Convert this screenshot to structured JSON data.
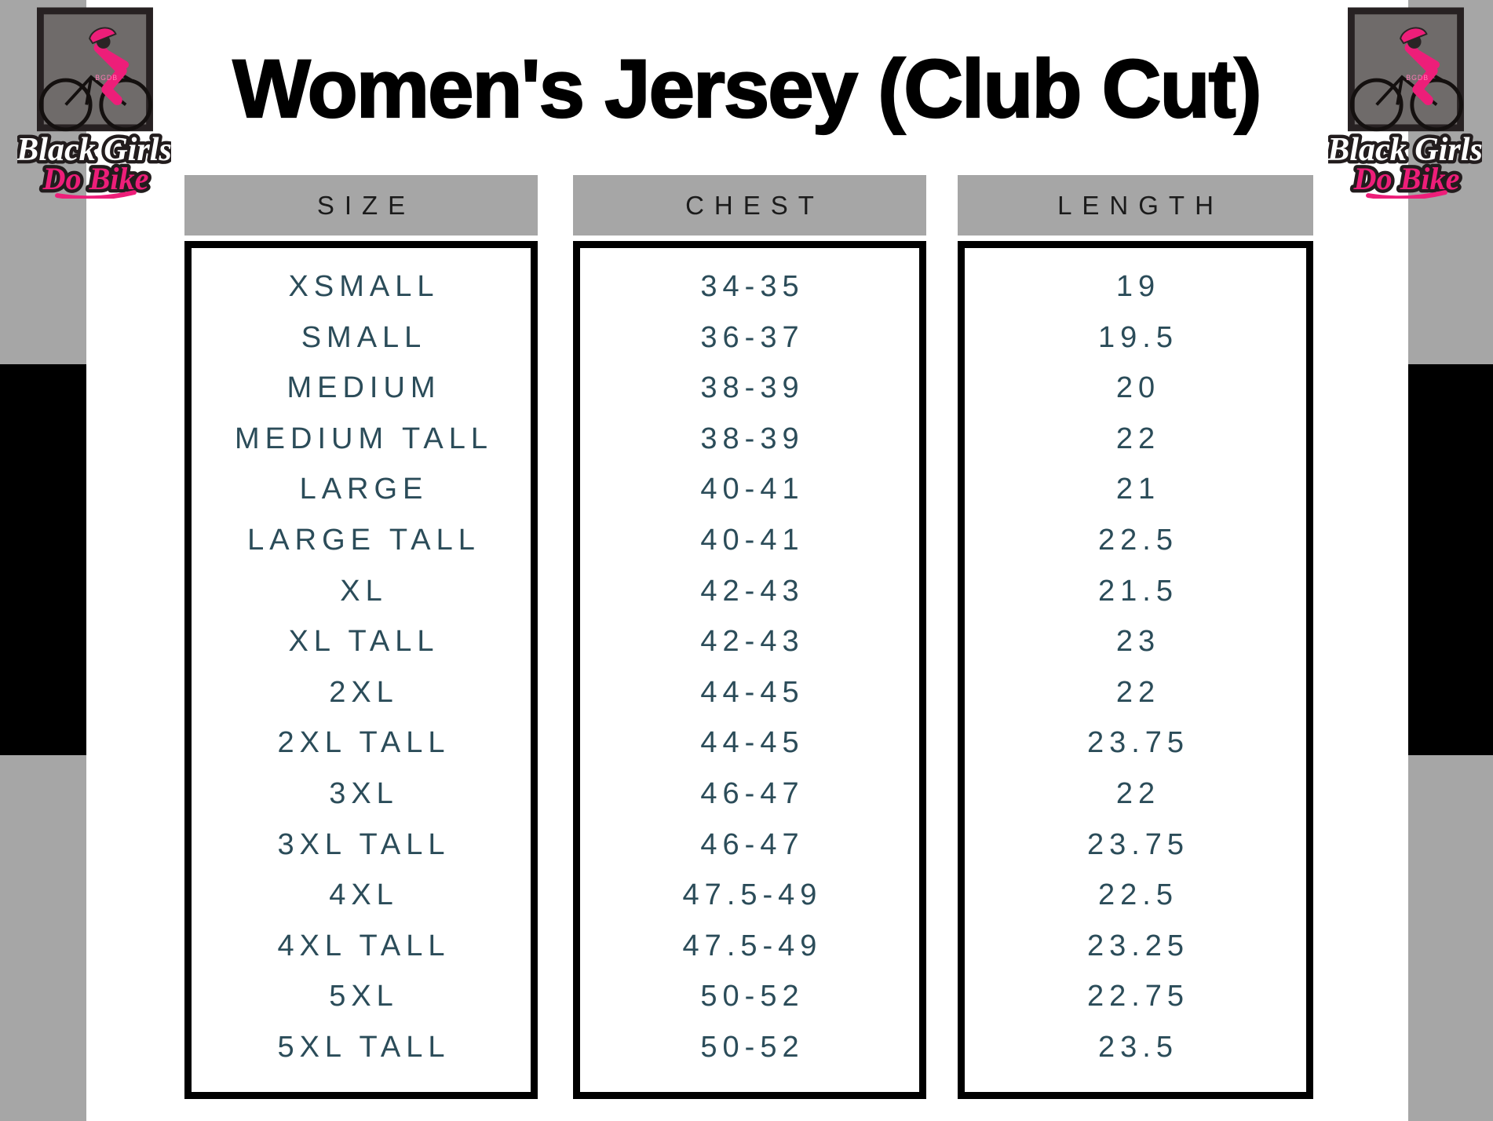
{
  "page": {
    "title": "Women's Jersey (Club Cut)"
  },
  "logo": {
    "line1": "Black Girls",
    "line2": "Do Bike",
    "monogram": "BGDB"
  },
  "colors": {
    "accent_pink": "#ed1e79",
    "stripe_gray": "#a6a6a6",
    "stripe_black": "#000000",
    "header_band_gray": "#a6a6a6",
    "cell_text_teal": "#2b4c59",
    "title_black": "#000000"
  },
  "chart_data": {
    "type": "table",
    "title": "Women's Jersey (Club Cut)",
    "columns": [
      "SIZE",
      "CHEST",
      "LENGTH"
    ],
    "rows": [
      [
        "XSMALL",
        "34-35",
        "19"
      ],
      [
        "SMALL",
        "36-37",
        "19.5"
      ],
      [
        "MEDIUM",
        "38-39",
        "20"
      ],
      [
        "MEDIUM TALL",
        "38-39",
        "22"
      ],
      [
        "LARGE",
        "40-41",
        "21"
      ],
      [
        "LARGE TALL",
        "40-41",
        "22.5"
      ],
      [
        "XL",
        "42-43",
        "21.5"
      ],
      [
        "XL TALL",
        "42-43",
        "23"
      ],
      [
        "2XL",
        "44-45",
        "22"
      ],
      [
        "2XL TALL",
        "44-45",
        "23.75"
      ],
      [
        "3XL",
        "46-47",
        "22"
      ],
      [
        "3XL TALL",
        "46-47",
        "23.75"
      ],
      [
        "4XL",
        "47.5-49",
        "22.5"
      ],
      [
        "4XL TALL",
        "47.5-49",
        "23.25"
      ],
      [
        "5XL",
        "50-52",
        "22.75"
      ],
      [
        "5XL TALL",
        "50-52",
        "23.5"
      ]
    ]
  }
}
